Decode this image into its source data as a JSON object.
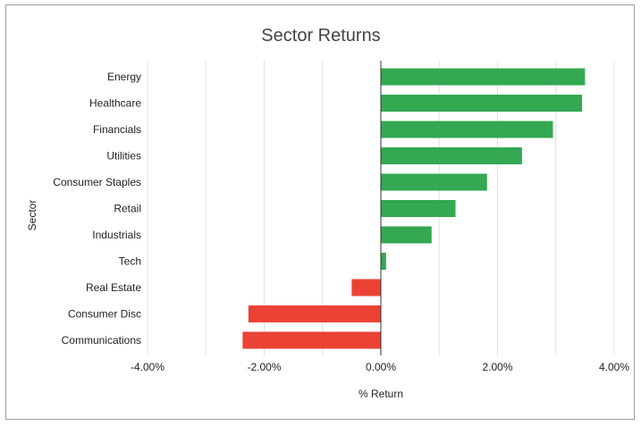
{
  "chart_data": {
    "type": "bar",
    "orientation": "horizontal",
    "title": "Sector Returns",
    "xlabel": "% Return",
    "ylabel": "Sector",
    "categories": [
      "Energy",
      "Healthcare",
      "Financials",
      "Utilities",
      "Consumer Staples",
      "Retail",
      "Industrials",
      "Tech",
      "Real Estate",
      "Consumer Disc",
      "Communications"
    ],
    "values": [
      3.5,
      3.45,
      2.95,
      2.42,
      1.82,
      1.28,
      0.87,
      0.09,
      -0.5,
      -2.27,
      -2.37
    ],
    "xlim": [
      -4,
      4
    ],
    "xticks": [
      -4,
      -2,
      0,
      2,
      4
    ],
    "xtick_labels": [
      "-4.00%",
      "-2.00%",
      "0.00%",
      "2.00%",
      "4.00%"
    ],
    "grid": true,
    "legend": "none",
    "colors": {
      "positive": "#34a853",
      "negative": "#ea4335",
      "gridline": "#e0e0e0",
      "zero_line": "#333333",
      "title": "#444444"
    }
  }
}
